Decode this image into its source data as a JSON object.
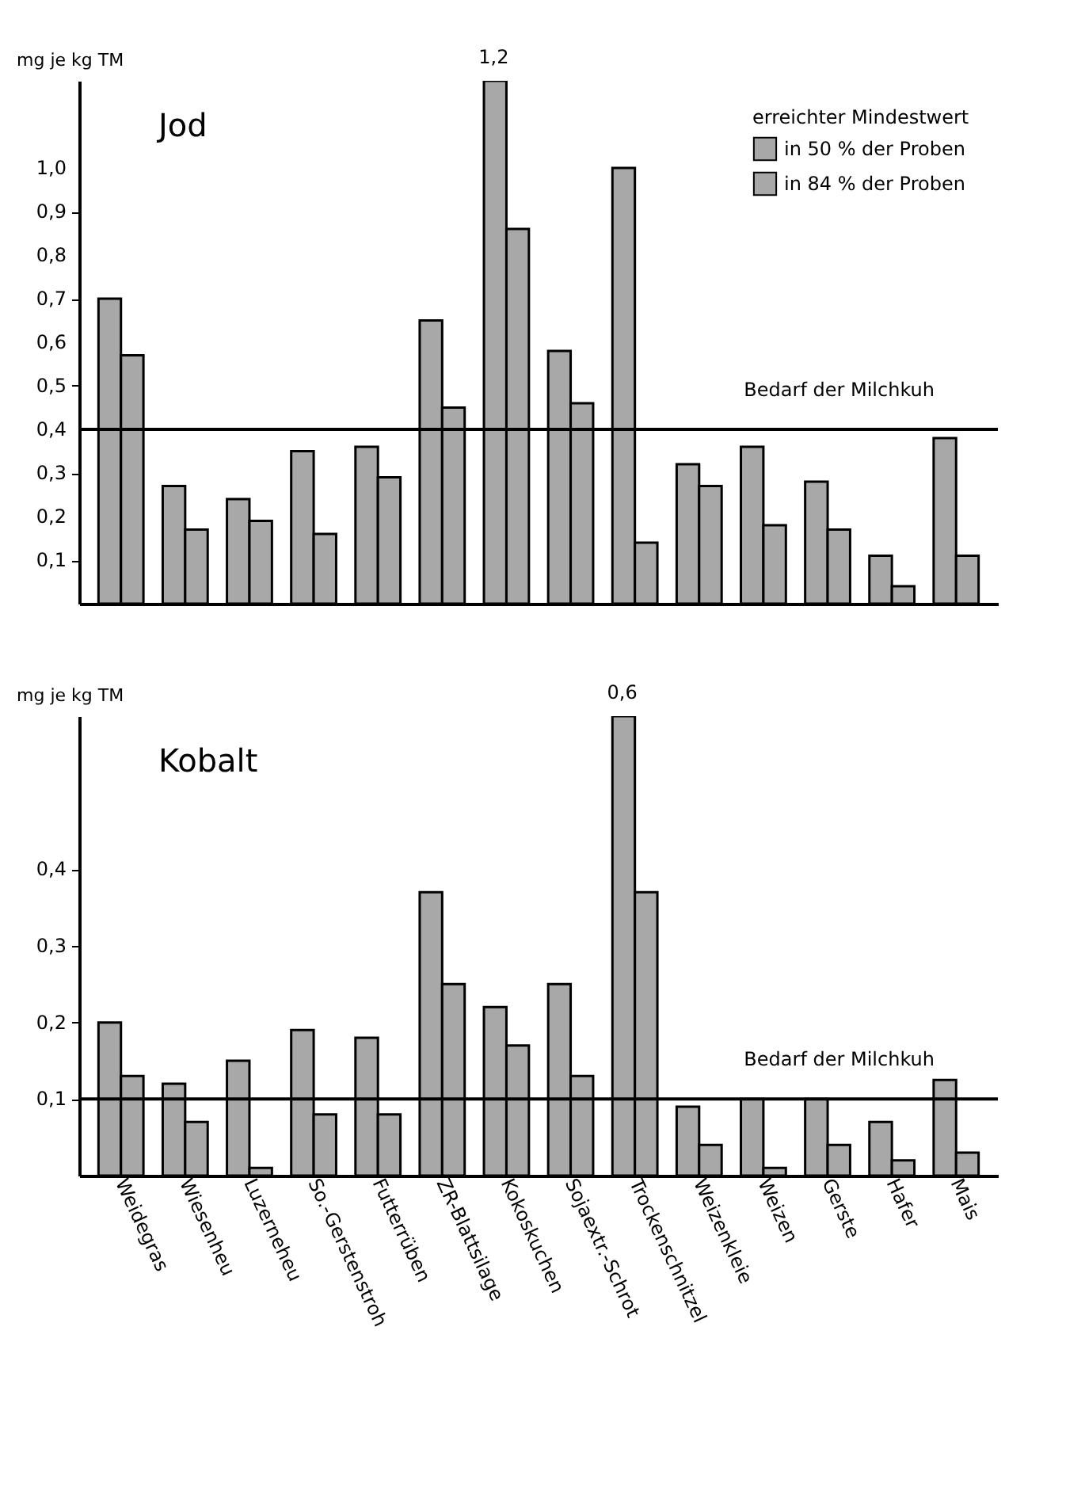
{
  "chart_data": [
    {
      "type": "bar",
      "title": "Jod",
      "ylabel": "mg je kg TM",
      "legend_title": "erreichter Mindestwert",
      "legend": "top right",
      "tick_labels": "y",
      "grid": false,
      "categories": [
        "Weidegras",
        "Wiesenheu",
        "Luzerneheu",
        "So.-Gerstenstroh",
        "Futterrüben",
        "ZR-Blattsilage",
        "Kokoskuchen",
        "Sojaextr.-Schrot",
        "Trockenschnitzel",
        "Weizenkleie",
        "Weizen",
        "Gerste",
        "Hafer",
        "Mais"
      ],
      "ylim": [
        0,
        1.2
      ],
      "yticks": [
        {
          "value": 0.1,
          "label": "0,1"
        },
        {
          "value": 0.2,
          "label": "0,2"
        },
        {
          "value": 0.3,
          "label": "0,3"
        },
        {
          "value": 0.4,
          "label": "0,4"
        },
        {
          "value": 0.5,
          "label": "0,5"
        },
        {
          "value": 0.6,
          "label": "0,6"
        },
        {
          "value": 0.7,
          "label": "0,7"
        },
        {
          "value": 0.8,
          "label": "0,8"
        },
        {
          "value": 0.9,
          "label": "0,9"
        },
        {
          "value": 1.0,
          "label": "1,0"
        }
      ],
      "series": [
        {
          "name": "in 50 % der Proben",
          "color": "#a8a8a8",
          "values": [
            0.7,
            0.27,
            0.24,
            0.35,
            0.36,
            0.65,
            1.2,
            0.58,
            1.0,
            0.32,
            0.36,
            0.28,
            0.11,
            0.38
          ]
        },
        {
          "name": "in 84 % der Proben",
          "color": "#a8a8a8",
          "values": [
            0.57,
            0.17,
            0.19,
            0.16,
            0.29,
            0.45,
            0.86,
            0.46,
            0.14,
            0.27,
            0.18,
            0.17,
            0.04,
            0.11
          ]
        }
      ],
      "ref_lines": [
        {
          "axis": "y",
          "value": 0.4,
          "label": "Bedarf der Milchkuh"
        }
      ],
      "annotations": [
        {
          "text": "1,2",
          "x": "Kokoskuchen",
          "y": 1.2
        }
      ]
    },
    {
      "type": "bar",
      "title": "Kobalt",
      "ylabel": "mg je kg TM",
      "grid": false,
      "categories": [
        "Weidegras",
        "Wiesenheu",
        "Luzerneheu",
        "So.-Gerstenstroh",
        "Futterrüben",
        "ZR-Blattsilage",
        "Kokoskuchen",
        "Sojaextr.-Schrot",
        "Trockenschnitzel",
        "Weizenkleie",
        "Weizen",
        "Gerste",
        "Hafer",
        "Mais"
      ],
      "ylim": [
        0,
        0.6
      ],
      "yticks": [
        {
          "value": 0.1,
          "label": "0,1"
        },
        {
          "value": 0.2,
          "label": "0,2"
        },
        {
          "value": 0.3,
          "label": "0,3"
        },
        {
          "value": 0.4,
          "label": "0,4"
        }
      ],
      "series": [
        {
          "color": "#a8a8a8",
          "values": [
            0.2,
            0.12,
            0.15,
            0.19,
            0.18,
            0.37,
            0.22,
            0.25,
            0.6,
            0.09,
            0.1,
            0.1,
            0.07,
            0.125
          ]
        },
        {
          "color": "#a8a8a8",
          "values": [
            0.13,
            0.07,
            0.01,
            0.08,
            0.08,
            0.25,
            0.17,
            0.13,
            0.37,
            0.04,
            0.01,
            0.04,
            0.02,
            0.03
          ]
        }
      ],
      "ref_lines": [
        {
          "axis": "y",
          "value": 0.1,
          "label": "Bedarf der Milchkuh"
        }
      ],
      "annotations": [
        {
          "text": "0,6",
          "x": "Trockenschnitzel",
          "y": 0.6
        }
      ]
    }
  ]
}
